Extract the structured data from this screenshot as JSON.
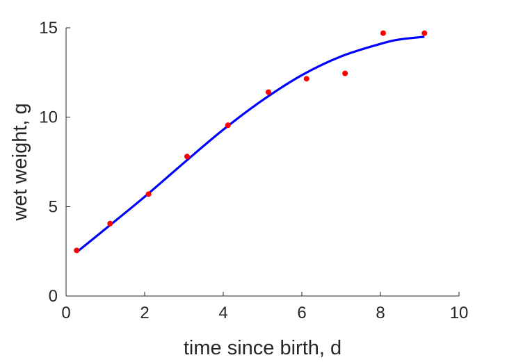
{
  "chart_data": {
    "type": "scatter",
    "title": "",
    "xlabel": "time since birth, d",
    "ylabel": "wet weight, g",
    "xlim": [
      0,
      10
    ],
    "ylim": [
      0,
      15
    ],
    "xticks": [
      0,
      2,
      4,
      6,
      8,
      10
    ],
    "yticks": [
      0,
      5,
      10,
      15
    ],
    "xtick_labels": [
      "0",
      "2",
      "4",
      "6",
      "8",
      "10"
    ],
    "ytick_labels": [
      "0",
      "5",
      "10",
      "15"
    ],
    "grid": false,
    "box": "open (left and bottom axes only)",
    "series": [
      {
        "kind": "scatter",
        "color": "#ff0000",
        "marker": "filled-circle",
        "points": [
          {
            "x": 0.27,
            "y": 2.55
          },
          {
            "x": 1.12,
            "y": 4.05
          },
          {
            "x": 2.1,
            "y": 5.7
          },
          {
            "x": 3.08,
            "y": 7.8
          },
          {
            "x": 4.12,
            "y": 9.55
          },
          {
            "x": 5.15,
            "y": 11.4
          },
          {
            "x": 6.12,
            "y": 12.15
          },
          {
            "x": 7.1,
            "y": 12.45
          },
          {
            "x": 8.07,
            "y": 14.7
          },
          {
            "x": 9.12,
            "y": 14.7
          }
        ]
      },
      {
        "kind": "line",
        "color": "#0000ff",
        "points": [
          {
            "x": 0.27,
            "y": 2.45
          },
          {
            "x": 1.0,
            "y": 3.75
          },
          {
            "x": 2.0,
            "y": 5.55
          },
          {
            "x": 3.0,
            "y": 7.45
          },
          {
            "x": 4.0,
            "y": 9.3
          },
          {
            "x": 5.0,
            "y": 10.95
          },
          {
            "x": 6.0,
            "y": 12.35
          },
          {
            "x": 7.0,
            "y": 13.4
          },
          {
            "x": 8.0,
            "y": 14.1
          },
          {
            "x": 8.5,
            "y": 14.35
          },
          {
            "x": 9.12,
            "y": 14.5
          }
        ]
      }
    ]
  }
}
